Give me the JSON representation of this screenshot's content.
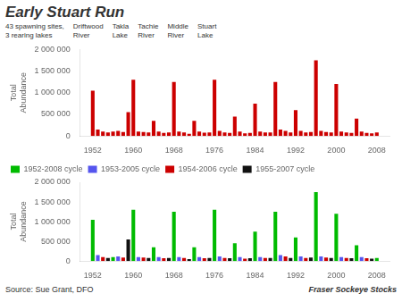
{
  "title": "Early Stuart Run",
  "subtitle": "Fraser Sockeye Stocks",
  "source": "Source: Sue Grant, DFO",
  "annotations": [
    "43 spawning sites,\n3 rearing lakes",
    "Driftwood\nRiver",
    "Takla\nLake",
    "Tachie\nRiver",
    "Middle\nRiver",
    "Stuart\nLake"
  ],
  "chart_data": [
    {
      "type": "bar",
      "ylabel": "Total\nAbundance",
      "x": [
        1952,
        1953,
        1954,
        1955,
        1956,
        1957,
        1958,
        1959,
        1960,
        1961,
        1962,
        1963,
        1964,
        1965,
        1966,
        1967,
        1968,
        1969,
        1970,
        1971,
        1972,
        1973,
        1974,
        1975,
        1976,
        1977,
        1978,
        1979,
        1980,
        1981,
        1982,
        1983,
        1984,
        1985,
        1986,
        1987,
        1988,
        1989,
        1990,
        1991,
        1992,
        1993,
        1994,
        1995,
        1996,
        1997,
        1998,
        1999,
        2000,
        2001,
        2002,
        2003,
        2004,
        2005,
        2006,
        2007,
        2008
      ],
      "values": [
        1050000,
        150000,
        100000,
        80000,
        100000,
        120000,
        90000,
        550000,
        1300000,
        100000,
        90000,
        80000,
        350000,
        100000,
        70000,
        80000,
        1250000,
        100000,
        80000,
        50000,
        350000,
        100000,
        75000,
        80000,
        1300000,
        120000,
        80000,
        70000,
        450000,
        100000,
        60000,
        70000,
        750000,
        100000,
        80000,
        80000,
        1250000,
        150000,
        120000,
        80000,
        600000,
        120000,
        80000,
        90000,
        1750000,
        120000,
        90000,
        80000,
        1200000,
        100000,
        80000,
        70000,
        400000,
        100000,
        70000,
        60000,
        80000
      ],
      "color": "#cc0000",
      "xlim": [
        1949.5,
        2010.5
      ],
      "xticks": [
        1952,
        1960,
        1968,
        1976,
        1984,
        1992,
        2000,
        2008
      ],
      "ylim": [
        0,
        2000000
      ],
      "yticks": [
        0,
        {
          "value": 500000,
          "label": "500 000"
        },
        {
          "value": 1000000,
          "label": "1 000 000"
        },
        {
          "value": 1500000,
          "label": "1 500 000"
        },
        {
          "value": 2000000,
          "label": "2 000 000"
        }
      ],
      "grid": false
    },
    {
      "type": "bar",
      "ylabel": "Total\nAbundance",
      "x": [
        1952,
        1953,
        1954,
        1955,
        1956,
        1957,
        1958,
        1959,
        1960,
        1961,
        1962,
        1963,
        1964,
        1965,
        1966,
        1967,
        1968,
        1969,
        1970,
        1971,
        1972,
        1973,
        1974,
        1975,
        1976,
        1977,
        1978,
        1979,
        1980,
        1981,
        1982,
        1983,
        1984,
        1985,
        1986,
        1987,
        1988,
        1989,
        1990,
        1991,
        1992,
        1993,
        1994,
        1995,
        1996,
        1997,
        1998,
        1999,
        2000,
        2001,
        2002,
        2003,
        2004,
        2005,
        2006,
        2007,
        2008
      ],
      "series": [
        {
          "name": "1952-2008 cycle",
          "color": "#00bb00",
          "values": [
            1050000,
            null,
            null,
            null,
            100000,
            null,
            null,
            null,
            1300000,
            null,
            null,
            null,
            350000,
            null,
            null,
            null,
            1250000,
            null,
            null,
            null,
            350000,
            null,
            null,
            null,
            1300000,
            null,
            null,
            null,
            450000,
            null,
            null,
            null,
            750000,
            null,
            null,
            null,
            1250000,
            null,
            null,
            null,
            600000,
            null,
            null,
            null,
            1750000,
            null,
            null,
            null,
            1200000,
            null,
            null,
            null,
            400000,
            null,
            null,
            null,
            80000
          ]
        },
        {
          "name": "1953-2005 cycle",
          "color": "#5555ee",
          "values": [
            null,
            150000,
            null,
            null,
            null,
            120000,
            null,
            null,
            null,
            100000,
            null,
            null,
            null,
            100000,
            null,
            null,
            null,
            100000,
            null,
            null,
            null,
            100000,
            null,
            null,
            null,
            120000,
            null,
            null,
            null,
            100000,
            null,
            null,
            null,
            100000,
            null,
            null,
            null,
            150000,
            null,
            null,
            null,
            120000,
            null,
            null,
            null,
            120000,
            null,
            null,
            null,
            100000,
            null,
            null,
            null,
            100000,
            null,
            null,
            null
          ]
        },
        {
          "name": "1954-2006 cycle",
          "color": "#cc0000",
          "values": [
            null,
            null,
            100000,
            null,
            null,
            null,
            90000,
            null,
            null,
            null,
            90000,
            null,
            null,
            null,
            70000,
            null,
            null,
            null,
            80000,
            null,
            null,
            null,
            75000,
            null,
            null,
            null,
            80000,
            null,
            null,
            null,
            60000,
            null,
            null,
            null,
            80000,
            null,
            null,
            null,
            120000,
            null,
            null,
            null,
            80000,
            null,
            null,
            null,
            90000,
            null,
            null,
            null,
            80000,
            null,
            null,
            null,
            70000,
            null,
            null
          ]
        },
        {
          "name": "1955-2007 cycle",
          "color": "#111111",
          "values": [
            null,
            null,
            null,
            80000,
            null,
            null,
            null,
            550000,
            null,
            null,
            null,
            80000,
            null,
            null,
            null,
            80000,
            null,
            null,
            null,
            50000,
            null,
            null,
            null,
            80000,
            null,
            null,
            null,
            70000,
            null,
            null,
            null,
            70000,
            null,
            null,
            null,
            80000,
            null,
            null,
            null,
            80000,
            null,
            null,
            null,
            90000,
            null,
            null,
            null,
            80000,
            null,
            null,
            null,
            70000,
            null,
            null,
            null,
            60000,
            null
          ]
        }
      ],
      "xlim": [
        1949.5,
        2010.5
      ],
      "xticks": [
        1952,
        1960,
        1968,
        1976,
        1984,
        1992,
        2000,
        2008
      ],
      "ylim": [
        0,
        2000000
      ],
      "yticks": [
        0,
        {
          "value": 500000,
          "label": "500 000"
        },
        {
          "value": 1000000,
          "label": "1 000 000"
        },
        {
          "value": 1500000,
          "label": "1 500 000"
        },
        {
          "value": 2000000,
          "label": "2 000 000"
        }
      ],
      "grid": false,
      "legend": "upper left"
    }
  ]
}
